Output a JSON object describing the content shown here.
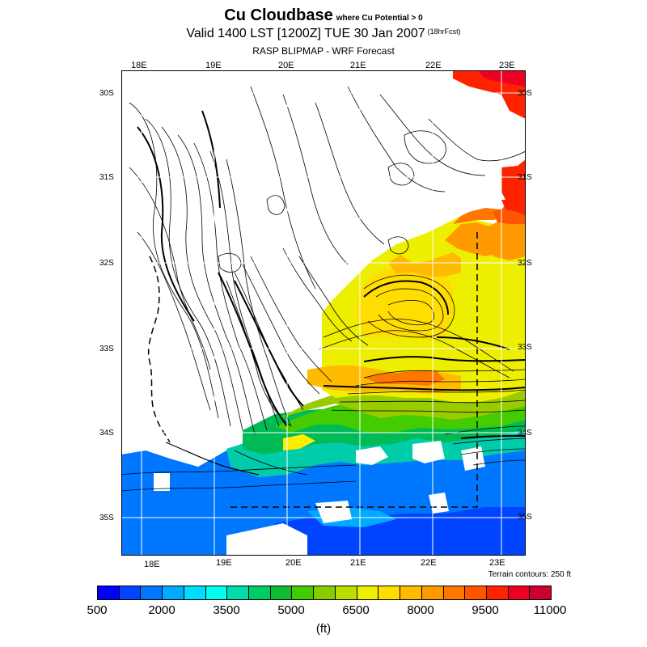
{
  "header": {
    "title": "Cu Cloudbase",
    "subtitle": "where Cu Potential > 0",
    "valid_line": "Valid 1400 LST [1200Z] TUE 30 Jan 2007",
    "forecast_tag": "(18hrFcst)",
    "model_line": "RASP BLIPMAP - WRF Forecast"
  },
  "axes": {
    "lon_top": [
      "18E",
      "19E",
      "20E",
      "21E",
      "22E",
      "23E"
    ],
    "lon_bottom": [
      "18E",
      "19E",
      "20E",
      "21E",
      "22E",
      "23E"
    ],
    "lat_left": [
      "30S",
      "31S",
      "32S",
      "33S",
      "34S",
      "35S"
    ],
    "lat_right": [
      "30S",
      "31S",
      "32S",
      "33S",
      "34S",
      "35S"
    ]
  },
  "terrain_note": "Terrain contours: 250 ft",
  "colorbar": {
    "colors": [
      "#0000ff",
      "#0044ff",
      "#0077ff",
      "#00aaff",
      "#00ddff",
      "#00ffee",
      "#00ddaa",
      "#00cc66",
      "#11bb33",
      "#44cc00",
      "#88cc00",
      "#bbdd00",
      "#eeee00",
      "#ffdd00",
      "#ffbb00",
      "#ff9900",
      "#ff7700",
      "#ff5500",
      "#ff2200",
      "#ee0022",
      "#cc0033"
    ],
    "labels": [
      "500",
      "2000",
      "3500",
      "5000",
      "6500",
      "8000",
      "9500",
      "11000"
    ],
    "units": "(ft)"
  }
}
